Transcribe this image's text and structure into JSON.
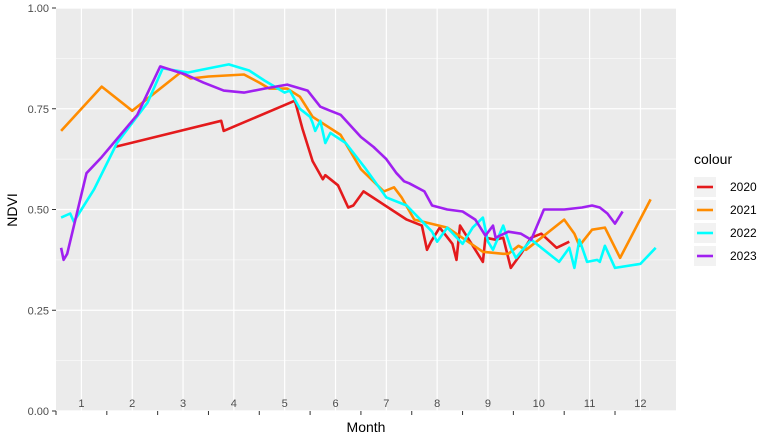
{
  "chart_data": {
    "type": "line",
    "title": "",
    "xlabel": "Month",
    "ylabel": "NDVI",
    "xlim": [
      0.5,
      12.7
    ],
    "ylim": [
      0,
      1
    ],
    "y_ticks": [
      "0.00",
      "0.25",
      "0.50",
      "0.75",
      "1.00"
    ],
    "month_labels": [
      "1",
      "2",
      "3",
      "4",
      "5",
      "6",
      "7",
      "8",
      "9",
      "10",
      "11",
      "12"
    ],
    "grid": true,
    "legend": {
      "title": "colour",
      "position": "right"
    },
    "series": [
      {
        "name": "2020",
        "color": "#E41A1C",
        "x": [
          1.65,
          3.75,
          3.8,
          5.2,
          5.35,
          5.55,
          5.75,
          5.8,
          5.95,
          6.05,
          6.25,
          6.35,
          6.55,
          7.4,
          7.7,
          7.8,
          7.88,
          8.05,
          8.3,
          8.38,
          8.45,
          8.65,
          8.9,
          8.95,
          9.15,
          9.3,
          9.45,
          9.65,
          9.85,
          10.05,
          10.35,
          10.6
        ],
        "y": [
          0.655,
          0.72,
          0.695,
          0.77,
          0.7,
          0.62,
          0.575,
          0.585,
          0.57,
          0.56,
          0.505,
          0.51,
          0.545,
          0.475,
          0.46,
          0.4,
          0.42,
          0.455,
          0.415,
          0.375,
          0.46,
          0.42,
          0.37,
          0.43,
          0.425,
          0.43,
          0.355,
          0.39,
          0.43,
          0.44,
          0.405,
          0.42
        ]
      },
      {
        "name": "2021",
        "color": "#FF8C00",
        "x": [
          0.6,
          1.4,
          2.0,
          2.95,
          3.15,
          3.5,
          4.2,
          4.5,
          4.7,
          5.05,
          5.3,
          5.55,
          6.1,
          6.5,
          6.95,
          7.15,
          7.3,
          7.55,
          8.2,
          8.9,
          9.3,
          9.4,
          9.6,
          9.75,
          9.9,
          10.5,
          10.7,
          10.8,
          11.05,
          11.3,
          11.6,
          12.2
        ],
        "y": [
          0.695,
          0.805,
          0.745,
          0.84,
          0.825,
          0.83,
          0.835,
          0.815,
          0.8,
          0.8,
          0.78,
          0.73,
          0.685,
          0.6,
          0.545,
          0.555,
          0.53,
          0.475,
          0.455,
          0.395,
          0.39,
          0.39,
          0.41,
          0.4,
          0.415,
          0.475,
          0.44,
          0.41,
          0.45,
          0.455,
          0.38,
          0.525
        ]
      },
      {
        "name": "2022",
        "color": "#00FFFF",
        "x": [
          0.6,
          0.78,
          0.85,
          0.95,
          1.25,
          1.7,
          2.3,
          2.6,
          3.1,
          3.5,
          3.9,
          4.3,
          4.6,
          5.0,
          5.1,
          5.3,
          5.5,
          5.55,
          5.6,
          5.7,
          5.8,
          5.9,
          6.2,
          6.6,
          7.0,
          7.4,
          7.9,
          8.0,
          8.2,
          8.5,
          8.7,
          8.9,
          9.0,
          9.1,
          9.3,
          9.45,
          9.55,
          9.85,
          10.4,
          10.6,
          10.7,
          10.8,
          10.95,
          11.15,
          11.2,
          11.3,
          11.5,
          12.0,
          12.3
        ],
        "y": [
          0.48,
          0.49,
          0.47,
          0.49,
          0.55,
          0.665,
          0.765,
          0.85,
          0.84,
          0.85,
          0.86,
          0.845,
          0.82,
          0.79,
          0.795,
          0.75,
          0.73,
          0.715,
          0.695,
          0.72,
          0.665,
          0.69,
          0.665,
          0.6,
          0.53,
          0.51,
          0.445,
          0.42,
          0.455,
          0.415,
          0.455,
          0.48,
          0.42,
          0.4,
          0.46,
          0.405,
          0.38,
          0.425,
          0.37,
          0.405,
          0.355,
          0.425,
          0.37,
          0.375,
          0.37,
          0.41,
          0.355,
          0.365,
          0.405
        ]
      },
      {
        "name": "2023",
        "color": "#A020F0",
        "x": [
          0.6,
          0.65,
          0.72,
          1.1,
          1.4,
          2.1,
          2.55,
          3.05,
          3.4,
          3.8,
          4.2,
          4.6,
          5.05,
          5.45,
          5.7,
          5.9,
          6.1,
          6.5,
          6.75,
          7.0,
          7.2,
          7.35,
          7.45,
          7.75,
          7.9,
          8.2,
          8.5,
          8.75,
          8.95,
          9.1,
          9.15,
          9.4,
          9.65,
          9.85,
          10.1,
          10.5,
          10.85,
          11.05,
          11.2,
          11.35,
          11.5,
          11.65
        ],
        "y": [
          0.405,
          0.375,
          0.39,
          0.59,
          0.63,
          0.735,
          0.855,
          0.835,
          0.815,
          0.795,
          0.79,
          0.8,
          0.81,
          0.795,
          0.755,
          0.745,
          0.735,
          0.68,
          0.655,
          0.625,
          0.59,
          0.57,
          0.565,
          0.545,
          0.51,
          0.5,
          0.495,
          0.475,
          0.435,
          0.46,
          0.43,
          0.445,
          0.44,
          0.425,
          0.5,
          0.5,
          0.505,
          0.51,
          0.505,
          0.49,
          0.465,
          0.495
        ]
      }
    ]
  }
}
